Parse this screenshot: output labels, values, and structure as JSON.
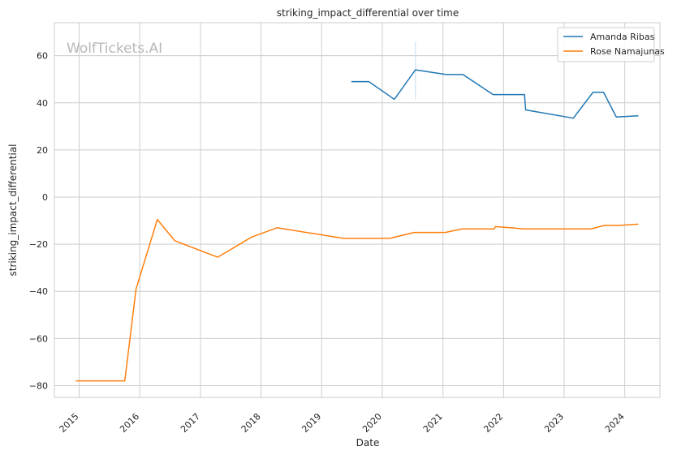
{
  "chart_data": {
    "type": "line",
    "title": "striking_impact_differential over time",
    "xlabel": "Date",
    "ylabel": "striking_impact_differential",
    "watermark": "WolfTickets.AI",
    "x_ticks": [
      "2015",
      "2016",
      "2017",
      "2018",
      "2019",
      "2020",
      "2021",
      "2022",
      "2023",
      "2024"
    ],
    "y_ticks": [
      60,
      40,
      20,
      0,
      -20,
      -40,
      -60,
      -80
    ],
    "ylim": [
      -85,
      74
    ],
    "xlim": [
      "2014-08-05",
      "2024-07-31"
    ],
    "grid": true,
    "legend_position": "top-right",
    "series": [
      {
        "name": "Amanda Ribas",
        "color": "#1f77b4",
        "points": [
          [
            "2019-06-29",
            49
          ],
          [
            "2019-10-12",
            49
          ],
          [
            "2020-03-14",
            41.5
          ],
          [
            "2020-07-19",
            54
          ],
          [
            "2021-01-20",
            52
          ],
          [
            "2021-05-01",
            52
          ],
          [
            "2021-10-30",
            43.5
          ],
          [
            "2022-05-07",
            43.5
          ],
          [
            "2022-05-14",
            37
          ],
          [
            "2023-02-25",
            33.5
          ],
          [
            "2023-06-24",
            44.5
          ],
          [
            "2023-08-26",
            44.5
          ],
          [
            "2023-11-11",
            34
          ],
          [
            "2024-03-23",
            34.5
          ]
        ]
      },
      {
        "name": "Rose Namajunas",
        "color": "#ff7f0e",
        "points": [
          [
            "2014-12-12",
            -78
          ],
          [
            "2015-10-03",
            -78
          ],
          [
            "2015-12-10",
            -39
          ],
          [
            "2016-04-16",
            -9.5
          ],
          [
            "2016-07-30",
            -18.5
          ],
          [
            "2017-04-15",
            -25.5
          ],
          [
            "2017-11-04",
            -17
          ],
          [
            "2018-04-07",
            -13
          ],
          [
            "2019-05-11",
            -17.5
          ],
          [
            "2020-02-15",
            -17.5
          ],
          [
            "2020-07-12",
            -15
          ],
          [
            "2021-01-15",
            -15
          ],
          [
            "2021-04-24",
            -13.5
          ],
          [
            "2021-11-06",
            -13.5
          ],
          [
            "2021-11-13",
            -12.5
          ],
          [
            "2022-05-07",
            -13.5
          ],
          [
            "2023-06-10",
            -13.5
          ],
          [
            "2023-09-02",
            -12
          ],
          [
            "2023-11-25",
            -12
          ],
          [
            "2024-03-23",
            -11.5
          ]
        ]
      }
    ],
    "annotations": [
      {
        "type": "vline",
        "x": "2020-07-19",
        "y_range": [
          41.5,
          66
        ],
        "color": "#c6dcef"
      }
    ]
  }
}
